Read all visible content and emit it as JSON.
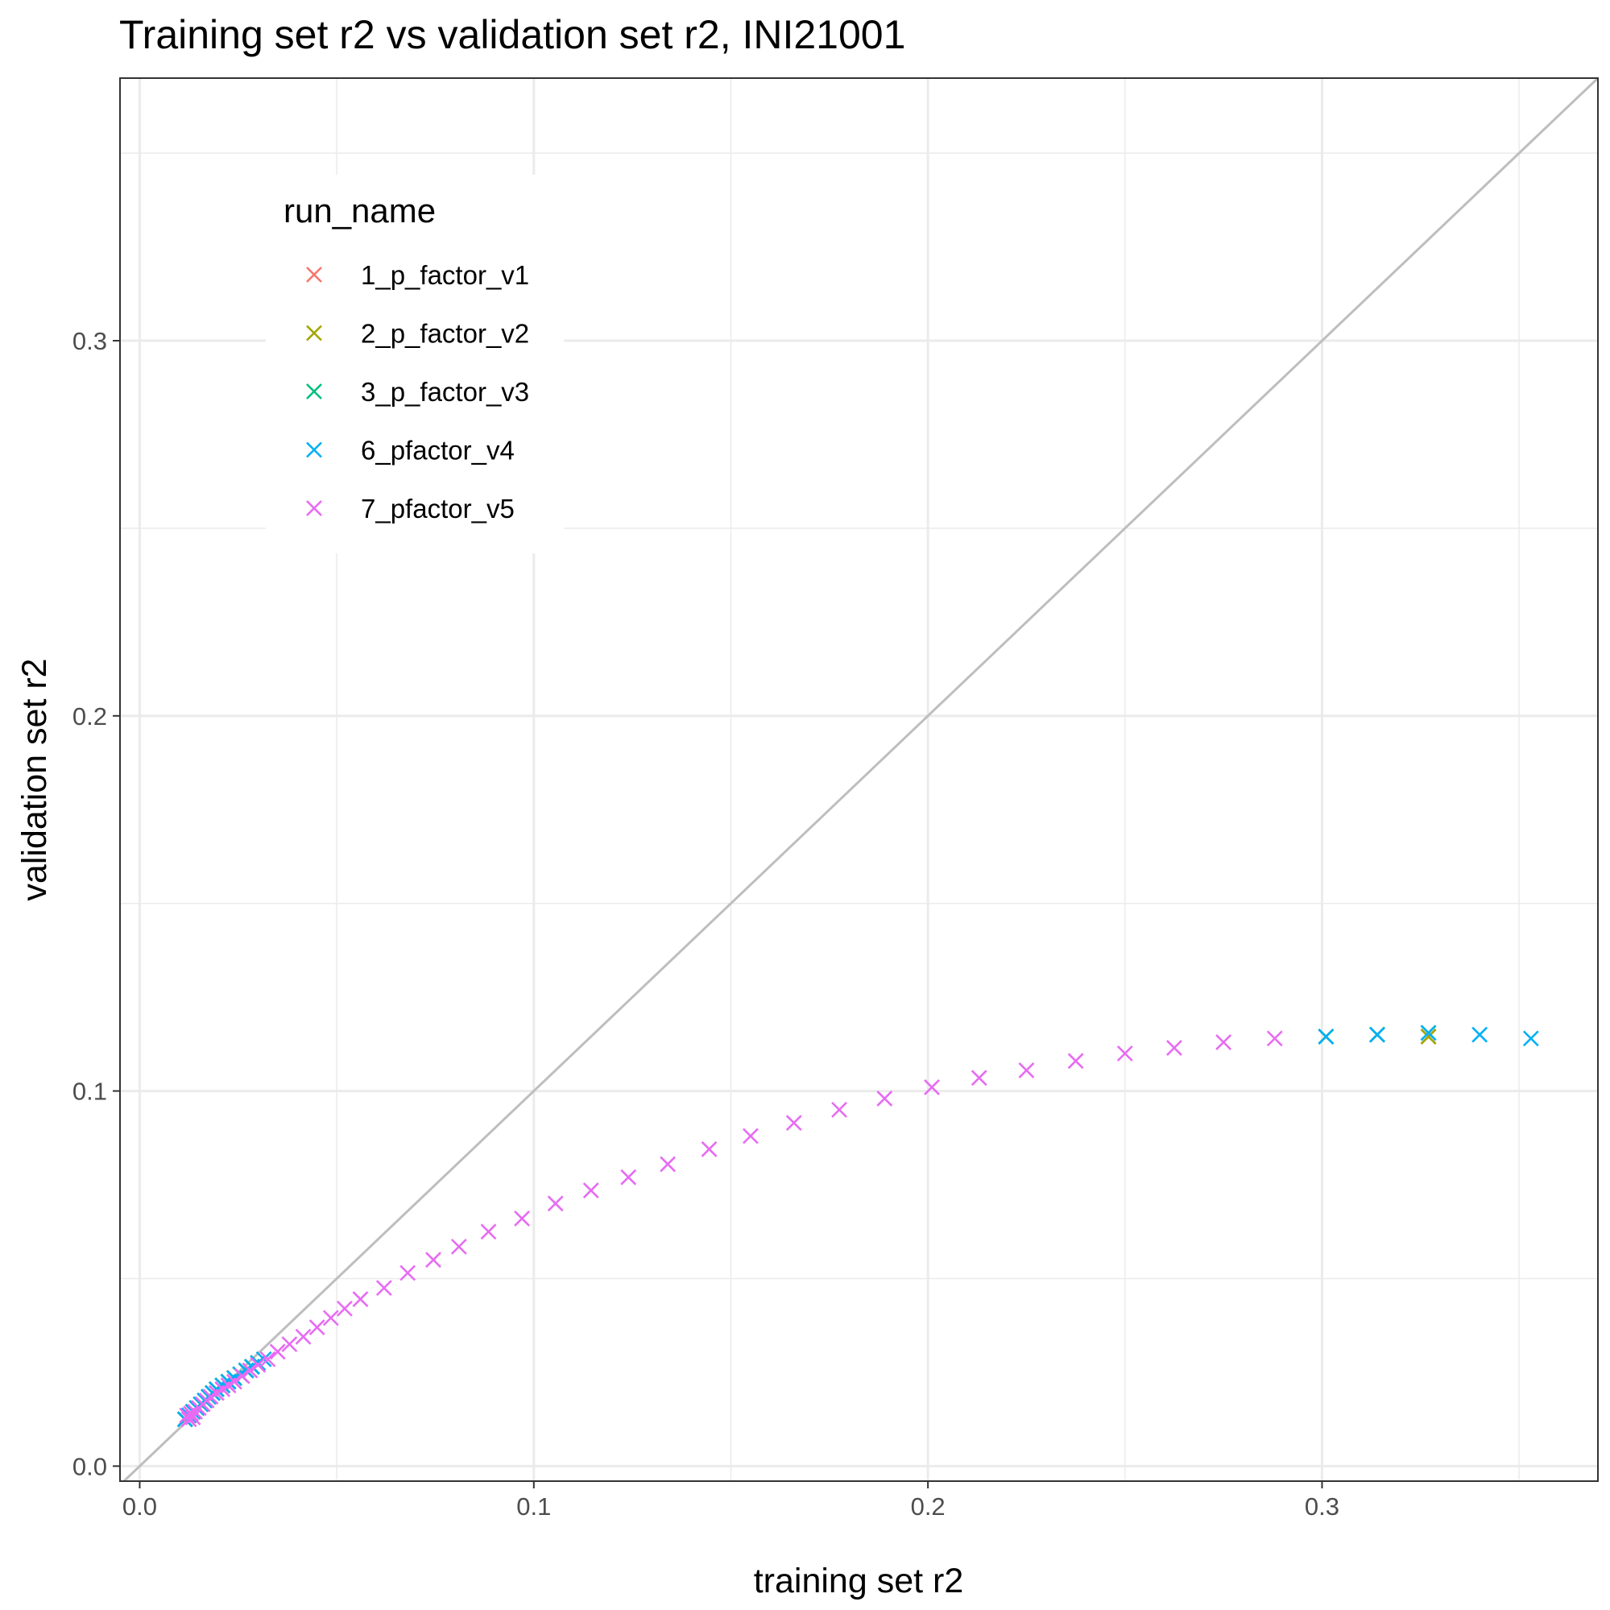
{
  "chart_data": {
    "type": "scatter",
    "title": "Training set r2 vs validation set r2, INI21001",
    "xlabel": "training set r2",
    "ylabel": "validation set r2",
    "xlim": [
      -0.005,
      0.37
    ],
    "ylim": [
      -0.004,
      0.37
    ],
    "xticks": [
      "0.0",
      "0.1",
      "0.2",
      "0.3"
    ],
    "yticks": [
      "0.0",
      "0.1",
      "0.2",
      "0.3"
    ],
    "xtick_values": [
      0.0,
      0.1,
      0.2,
      0.3
    ],
    "ytick_values": [
      0.0,
      0.1,
      0.2,
      0.3
    ],
    "grid": true,
    "reference_line": "y = x",
    "marker": "x",
    "legend": {
      "title": "run_name",
      "placement": "top-left",
      "entries": [
        "1_p_factor_v1",
        "2_p_factor_v2",
        "3_p_factor_v3",
        "6_pfactor_v4",
        "7_pfactor_v5"
      ]
    },
    "series": [
      {
        "name": "1_p_factor_v1",
        "color": "#F8766D",
        "x": [
          0.0115,
          0.0125,
          0.0135,
          0.0145,
          0.0155,
          0.0165,
          0.0175,
          0.0185,
          0.0195,
          0.021,
          0.0225,
          0.024,
          0.0255,
          0.027,
          0.0285,
          0.03,
          0.301,
          0.314,
          0.327
        ],
        "y": [
          0.0125,
          0.0135,
          0.0145,
          0.0155,
          0.0165,
          0.0175,
          0.0185,
          0.0195,
          0.0205,
          0.0215,
          0.0225,
          0.0235,
          0.0245,
          0.0255,
          0.0265,
          0.0275,
          0.1145,
          0.115,
          0.1145
        ]
      },
      {
        "name": "2_p_factor_v2",
        "color": "#A3A500",
        "x": [
          0.0115,
          0.0125,
          0.0135,
          0.0145,
          0.0155,
          0.0165,
          0.0175,
          0.0185,
          0.0195,
          0.021,
          0.0225,
          0.024,
          0.0255,
          0.027,
          0.0285,
          0.03,
          0.301,
          0.314,
          0.327
        ],
        "y": [
          0.0125,
          0.0135,
          0.0145,
          0.0155,
          0.0165,
          0.0175,
          0.0185,
          0.0195,
          0.0205,
          0.0215,
          0.0225,
          0.0235,
          0.0245,
          0.0255,
          0.0265,
          0.0275,
          0.1145,
          0.115,
          0.1145
        ]
      },
      {
        "name": "3_p_factor_v3",
        "color": "#00BF7D",
        "x": [
          0.0115,
          0.0125,
          0.0135,
          0.0145,
          0.0155,
          0.0165,
          0.0175,
          0.0185,
          0.0195,
          0.021,
          0.0225,
          0.024,
          0.0255,
          0.027,
          0.0285,
          0.03,
          0.301,
          0.314,
          0.327
        ],
        "y": [
          0.0125,
          0.0135,
          0.0145,
          0.0155,
          0.0165,
          0.0175,
          0.0185,
          0.0195,
          0.0205,
          0.0215,
          0.0225,
          0.0235,
          0.0245,
          0.0255,
          0.0265,
          0.0275,
          0.1145,
          0.115,
          0.1155
        ]
      },
      {
        "name": "6_pfactor_v4",
        "color": "#00B0F6",
        "x": [
          0.0115,
          0.0125,
          0.0135,
          0.0145,
          0.0155,
          0.0165,
          0.0175,
          0.0185,
          0.0195,
          0.021,
          0.0225,
          0.024,
          0.0255,
          0.027,
          0.0285,
          0.03,
          0.0315,
          0.301,
          0.314,
          0.327,
          0.34,
          0.353
        ],
        "y": [
          0.0125,
          0.0135,
          0.0145,
          0.0155,
          0.0165,
          0.0175,
          0.0185,
          0.0195,
          0.0205,
          0.0215,
          0.0225,
          0.0235,
          0.0245,
          0.0255,
          0.0265,
          0.0275,
          0.0285,
          0.1145,
          0.115,
          0.1155,
          0.115,
          0.114
        ]
      },
      {
        "name": "7_pfactor_v5",
        "color": "#E76BF3",
        "x": [
          0.012,
          0.0125,
          0.013,
          0.0135,
          0.014,
          0.015,
          0.016,
          0.017,
          0.018,
          0.0195,
          0.021,
          0.0225,
          0.024,
          0.026,
          0.028,
          0.03,
          0.0325,
          0.035,
          0.038,
          0.0415,
          0.045,
          0.0485,
          0.052,
          0.056,
          0.062,
          0.068,
          0.0745,
          0.081,
          0.0885,
          0.097,
          0.1055,
          0.1145,
          0.124,
          0.134,
          0.1445,
          0.155,
          0.166,
          0.1775,
          0.189,
          0.201,
          0.213,
          0.225,
          0.2375,
          0.25,
          0.2625,
          0.275,
          0.288
        ],
        "y": [
          0.0135,
          0.0125,
          0.014,
          0.013,
          0.0145,
          0.0155,
          0.0165,
          0.0175,
          0.0185,
          0.0195,
          0.0205,
          0.0215,
          0.0225,
          0.024,
          0.0255,
          0.027,
          0.0285,
          0.0305,
          0.0325,
          0.0345,
          0.037,
          0.0395,
          0.042,
          0.0445,
          0.0475,
          0.0515,
          0.055,
          0.0585,
          0.0625,
          0.066,
          0.07,
          0.0735,
          0.077,
          0.0805,
          0.0845,
          0.088,
          0.0915,
          0.095,
          0.098,
          0.101,
          0.1035,
          0.1055,
          0.108,
          0.11,
          0.1115,
          0.113,
          0.114
        ]
      }
    ]
  }
}
